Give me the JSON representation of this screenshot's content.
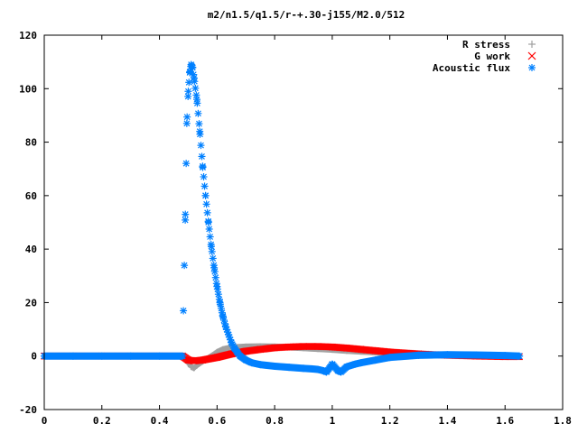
{
  "chart_data": {
    "type": "scatter",
    "title": "m2/n1.5/q1.5/r-+.30-j155/M2.0/512",
    "xlabel": "",
    "ylabel": "",
    "xlim": [
      0,
      1.8
    ],
    "ylim": [
      -20,
      120
    ],
    "x_ticks": [
      "0",
      "0.2",
      "0.4",
      "0.6",
      "0.8",
      "1",
      "1.2",
      "1.4",
      "1.6",
      "1.8"
    ],
    "y_ticks": [
      "-20",
      "0",
      "20",
      "40",
      "60",
      "80",
      "100",
      "120"
    ],
    "grid": false,
    "legend_position": "top-right",
    "series": [
      {
        "name": "R stress",
        "marker": "plus",
        "color": "#a0a0a0",
        "x": [
          0,
          0.1,
          0.2,
          0.3,
          0.4,
          0.48,
          0.5,
          0.51,
          0.52,
          0.53,
          0.55,
          0.58,
          0.6,
          0.62,
          0.65,
          0.7,
          0.75,
          0.8,
          0.85,
          0.9,
          0.95,
          1.0,
          1.05,
          1.1,
          1.15,
          1.2,
          1.3,
          1.4,
          1.5,
          1.6,
          1.65
        ],
        "y": [
          0,
          0,
          0,
          0,
          0,
          0,
          -2.5,
          -4,
          -4.5,
          -3.5,
          -2,
          0,
          1.5,
          2.5,
          3.2,
          3.5,
          3.6,
          3.5,
          3.3,
          3.0,
          2.7,
          2.4,
          2.0,
          1.7,
          1.4,
          1.1,
          0.7,
          0.4,
          0.2,
          0.1,
          0
        ]
      },
      {
        "name": "G work",
        "marker": "cross",
        "color": "#ff0000",
        "x": [
          0,
          0.1,
          0.2,
          0.3,
          0.4,
          0.48,
          0.5,
          0.52,
          0.55,
          0.6,
          0.65,
          0.7,
          0.75,
          0.8,
          0.85,
          0.9,
          0.95,
          1.0,
          1.05,
          1.1,
          1.15,
          1.2,
          1.3,
          1.4,
          1.5,
          1.6,
          1.65
        ],
        "y": [
          0,
          0,
          0,
          0,
          0,
          0,
          -1.5,
          -1.8,
          -1.5,
          -0.5,
          0.8,
          1.8,
          2.5,
          3.1,
          3.4,
          3.6,
          3.6,
          3.4,
          3.0,
          2.5,
          2.0,
          1.5,
          0.8,
          0.3,
          0,
          -0.2,
          -0.2
        ]
      },
      {
        "name": "Acoustic flux",
        "marker": "star",
        "color": "#0080ff",
        "x": [
          0,
          0.1,
          0.2,
          0.3,
          0.4,
          0.48,
          0.49,
          0.495,
          0.5,
          0.505,
          0.51,
          0.515,
          0.52,
          0.53,
          0.54,
          0.55,
          0.56,
          0.57,
          0.58,
          0.59,
          0.6,
          0.61,
          0.62,
          0.63,
          0.64,
          0.65,
          0.66,
          0.67,
          0.68,
          0.7,
          0.72,
          0.75,
          0.8,
          0.85,
          0.9,
          0.93,
          0.95,
          0.97,
          0.98,
          1.0,
          1.02,
          1.03,
          1.05,
          1.08,
          1.1,
          1.15,
          1.2,
          1.3,
          1.4,
          1.5,
          1.6,
          1.65
        ],
        "y": [
          0,
          0,
          0,
          0,
          0,
          0,
          53,
          87,
          99,
          106,
          109,
          108,
          104,
          96,
          84,
          71,
          60,
          50,
          41,
          33,
          26,
          20,
          15,
          11,
          8,
          5,
          3,
          1.5,
          0,
          -1.5,
          -2.5,
          -3.2,
          -3.8,
          -4.2,
          -4.6,
          -4.8,
          -5,
          -5.5,
          -6,
          -3,
          -5.5,
          -6,
          -4,
          -3,
          -2.5,
          -1.5,
          -0.5,
          0.3,
          0.5,
          0.4,
          0.2,
          0
        ]
      }
    ]
  }
}
